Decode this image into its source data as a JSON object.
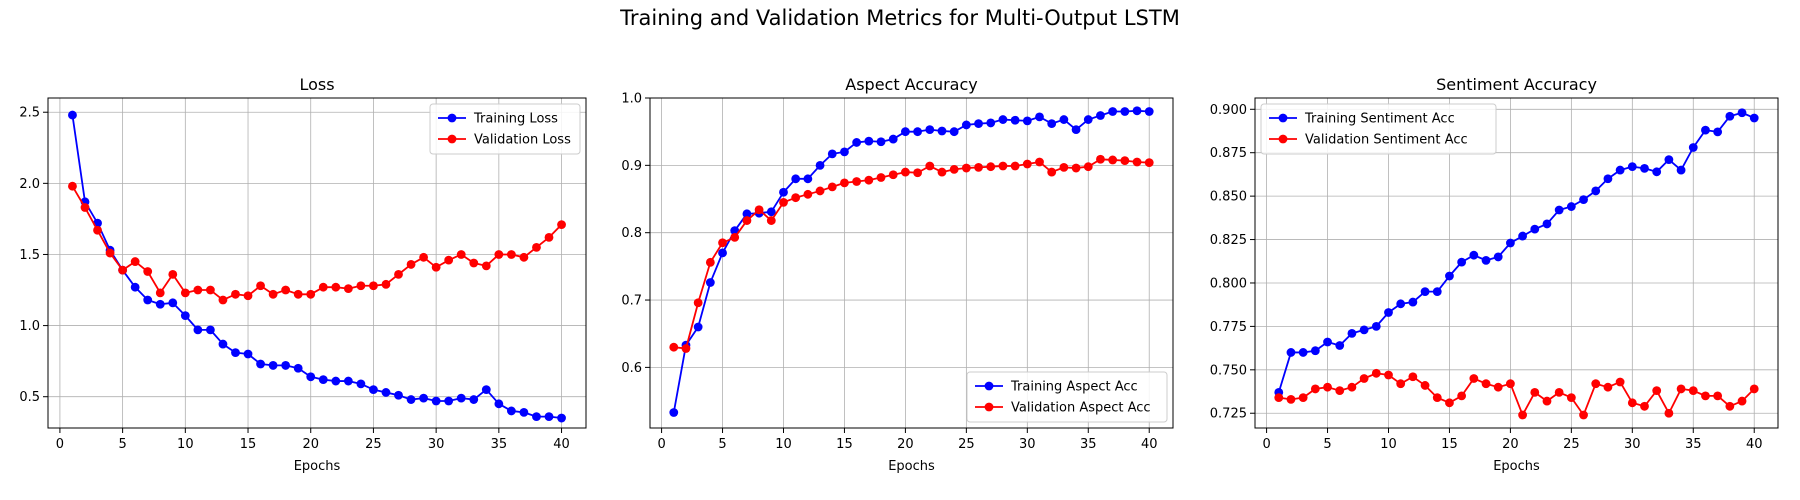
{
  "figure": {
    "suptitle": "Training and Validation Metrics for Multi-Output LSTM"
  },
  "colors": {
    "training": "#0000ff",
    "validation": "#ff0000",
    "grid": "#b0b0b0",
    "axis": "#000000"
  },
  "chart_data": [
    {
      "type": "line",
      "title": "Loss",
      "xlabel": "Epochs",
      "ylabel": "",
      "xlim": [
        -0.95,
        41.95
      ],
      "ylim": [
        0.28,
        2.6
      ],
      "xticks": [
        0,
        5,
        10,
        15,
        20,
        25,
        30,
        35,
        40
      ],
      "yticks": [
        0.5,
        1.0,
        1.5,
        2.0,
        2.5
      ],
      "ytick_labels": [
        "0.5",
        "1.0",
        "1.5",
        "2.0",
        "2.5"
      ],
      "grid": true,
      "legend": "upper-right",
      "x": [
        1,
        2,
        3,
        4,
        5,
        6,
        7,
        8,
        9,
        10,
        11,
        12,
        13,
        14,
        15,
        16,
        17,
        18,
        19,
        20,
        21,
        22,
        23,
        24,
        25,
        26,
        27,
        28,
        29,
        30,
        31,
        32,
        33,
        34,
        35,
        36,
        37,
        38,
        39,
        40
      ],
      "series": [
        {
          "name": "Training Loss",
          "color": "#0000ff",
          "values": [
            2.48,
            1.87,
            1.72,
            1.53,
            1.39,
            1.27,
            1.18,
            1.15,
            1.16,
            1.07,
            0.97,
            0.97,
            0.87,
            0.81,
            0.8,
            0.73,
            0.72,
            0.72,
            0.7,
            0.64,
            0.62,
            0.61,
            0.61,
            0.59,
            0.55,
            0.53,
            0.51,
            0.48,
            0.49,
            0.47,
            0.47,
            0.49,
            0.48,
            0.55,
            0.45,
            0.4,
            0.39,
            0.36,
            0.36,
            0.35
          ]
        },
        {
          "name": "Validation Loss",
          "color": "#ff0000",
          "values": [
            1.98,
            1.83,
            1.67,
            1.51,
            1.39,
            1.45,
            1.38,
            1.23,
            1.36,
            1.23,
            1.25,
            1.25,
            1.18,
            1.22,
            1.21,
            1.28,
            1.22,
            1.25,
            1.22,
            1.22,
            1.27,
            1.27,
            1.26,
            1.28,
            1.28,
            1.29,
            1.36,
            1.43,
            1.48,
            1.41,
            1.46,
            1.5,
            1.44,
            1.42,
            1.5,
            1.5,
            1.48,
            1.55,
            1.62,
            1.71
          ]
        }
      ]
    },
    {
      "type": "line",
      "title": "Aspect Accuracy",
      "xlabel": "Epochs",
      "ylabel": "",
      "xlim": [
        -0.95,
        41.95
      ],
      "ylim": [
        0.51,
        1.0
      ],
      "xticks": [
        0,
        5,
        10,
        15,
        20,
        25,
        30,
        35,
        40
      ],
      "yticks": [
        0.6,
        0.7,
        0.8,
        0.9,
        1.0
      ],
      "ytick_labels": [
        "0.6",
        "0.7",
        "0.8",
        "0.9",
        "1.0"
      ],
      "grid": true,
      "legend": "lower-right",
      "x": [
        1,
        2,
        3,
        4,
        5,
        6,
        7,
        8,
        9,
        10,
        11,
        12,
        13,
        14,
        15,
        16,
        17,
        18,
        19,
        20,
        21,
        22,
        23,
        24,
        25,
        26,
        27,
        28,
        29,
        30,
        31,
        32,
        33,
        34,
        35,
        36,
        37,
        38,
        39,
        40
      ],
      "series": [
        {
          "name": "Training Aspect Acc",
          "color": "#0000ff",
          "values": [
            0.533,
            0.633,
            0.66,
            0.726,
            0.77,
            0.803,
            0.828,
            0.829,
            0.831,
            0.86,
            0.88,
            0.88,
            0.9,
            0.917,
            0.92,
            0.934,
            0.936,
            0.935,
            0.939,
            0.95,
            0.95,
            0.953,
            0.951,
            0.95,
            0.96,
            0.962,
            0.963,
            0.968,
            0.967,
            0.966,
            0.972,
            0.962,
            0.968,
            0.953,
            0.968,
            0.974,
            0.98,
            0.98,
            0.981,
            0.98
          ]
        },
        {
          "name": "Validation Aspect Acc",
          "color": "#ff0000",
          "values": [
            0.63,
            0.628,
            0.696,
            0.756,
            0.785,
            0.793,
            0.818,
            0.834,
            0.818,
            0.845,
            0.852,
            0.857,
            0.862,
            0.868,
            0.874,
            0.876,
            0.878,
            0.882,
            0.886,
            0.89,
            0.889,
            0.899,
            0.89,
            0.894,
            0.896,
            0.897,
            0.898,
            0.899,
            0.899,
            0.902,
            0.905,
            0.89,
            0.897,
            0.896,
            0.898,
            0.909,
            0.908,
            0.907,
            0.905,
            0.904
          ]
        }
      ]
    },
    {
      "type": "line",
      "title": "Sentiment Accuracy",
      "xlabel": "Epochs",
      "ylabel": "",
      "xlim": [
        -0.95,
        41.95
      ],
      "ylim": [
        0.7165,
        0.9065
      ],
      "xticks": [
        0,
        5,
        10,
        15,
        20,
        25,
        30,
        35,
        40
      ],
      "yticks": [
        0.725,
        0.75,
        0.775,
        0.8,
        0.825,
        0.85,
        0.875,
        0.9
      ],
      "ytick_labels": [
        "0.725",
        "0.750",
        "0.775",
        "0.800",
        "0.825",
        "0.850",
        "0.875",
        "0.900"
      ],
      "grid": true,
      "legend": "upper-left",
      "x": [
        1,
        2,
        3,
        4,
        5,
        6,
        7,
        8,
        9,
        10,
        11,
        12,
        13,
        14,
        15,
        16,
        17,
        18,
        19,
        20,
        21,
        22,
        23,
        24,
        25,
        26,
        27,
        28,
        29,
        30,
        31,
        32,
        33,
        34,
        35,
        36,
        37,
        38,
        39,
        40
      ],
      "series": [
        {
          "name": "Training Sentiment Acc",
          "color": "#0000ff",
          "values": [
            0.737,
            0.76,
            0.76,
            0.761,
            0.766,
            0.764,
            0.771,
            0.773,
            0.775,
            0.783,
            0.788,
            0.789,
            0.795,
            0.795,
            0.804,
            0.812,
            0.816,
            0.813,
            0.815,
            0.823,
            0.827,
            0.831,
            0.834,
            0.842,
            0.844,
            0.848,
            0.853,
            0.86,
            0.865,
            0.867,
            0.866,
            0.864,
            0.871,
            0.865,
            0.878,
            0.888,
            0.887,
            0.896,
            0.898,
            0.895
          ]
        },
        {
          "name": "Validation Sentiment Acc",
          "color": "#ff0000",
          "values": [
            0.734,
            0.733,
            0.734,
            0.739,
            0.74,
            0.738,
            0.74,
            0.745,
            0.748,
            0.747,
            0.742,
            0.746,
            0.741,
            0.734,
            0.731,
            0.735,
            0.745,
            0.742,
            0.74,
            0.742,
            0.724,
            0.737,
            0.732,
            0.737,
            0.734,
            0.724,
            0.742,
            0.74,
            0.743,
            0.731,
            0.729,
            0.738,
            0.725,
            0.739,
            0.738,
            0.735,
            0.735,
            0.729,
            0.732,
            0.739
          ]
        }
      ]
    }
  ]
}
